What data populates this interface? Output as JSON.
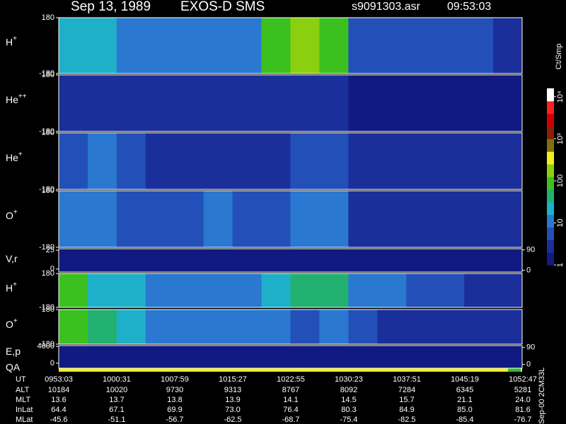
{
  "header": {
    "date": "Sep 13, 1989",
    "instrument": "EXOS-D SMS",
    "file": "s9091303.asr",
    "time": "09:53:03"
  },
  "chart_data": [
    {
      "type": "heatmap",
      "label": "H",
      "sup": "+",
      "ylim": [
        -180,
        180
      ],
      "yticks": [
        180,
        -180
      ],
      "values": [
        1.4,
        1.2,
        1.1,
        1.0,
        1.0,
        1.0,
        1.0,
        1.8,
        2.2,
        2.0,
        0.6,
        0.6,
        0.7,
        0.8,
        0.6,
        0.4
      ]
    },
    {
      "type": "heatmap",
      "label": "He",
      "sup": "++",
      "ylim": [
        -180,
        180
      ],
      "yticks": [
        180,
        -180
      ],
      "values": [
        0.4,
        0.5,
        0.5,
        0.4,
        0.3,
        0.3,
        0.3,
        0.3,
        0.4,
        0.3,
        0.2,
        0.2,
        0.2,
        0.2,
        0.2,
        0.2
      ]
    },
    {
      "type": "heatmap",
      "label": "He",
      "sup": "+",
      "ylim": [
        -180,
        180
      ],
      "yticks": [
        180,
        -180
      ],
      "values": [
        0.8,
        0.9,
        0.7,
        0.5,
        0.4,
        0.4,
        0.4,
        0.4,
        0.6,
        0.6,
        0.3,
        0.3,
        0.3,
        0.3,
        0.3,
        0.3
      ]
    },
    {
      "type": "heatmap",
      "label": "O",
      "sup": "+",
      "ylim": [
        -180,
        180
      ],
      "yticks": [
        180,
        -180
      ],
      "values": [
        1.0,
        0.9,
        0.8,
        0.8,
        0.7,
        0.9,
        0.6,
        0.6,
        0.9,
        0.9,
        0.5,
        0.4,
        0.3,
        0.3,
        0.3,
        0.4
      ]
    },
    {
      "type": "heatmap",
      "label": "V,r",
      "ylim": [
        -4,
        27
      ],
      "yticks": [
        25,
        0
      ],
      "y2lim": [
        -8,
        95
      ],
      "y2ticks": [
        90,
        0
      ],
      "values": [
        0,
        0,
        0,
        0,
        0,
        0,
        0,
        0,
        0,
        0,
        0,
        0,
        0,
        0,
        0,
        0
      ]
    },
    {
      "type": "heatmap",
      "label": "H",
      "sup": "+",
      "ylim": [
        -180,
        180
      ],
      "yticks": [
        180,
        -180
      ],
      "values": [
        1.8,
        1.3,
        1.2,
        1.1,
        1.0,
        1.1,
        1.1,
        1.3,
        1.5,
        1.5,
        1.1,
        0.9,
        0.8,
        0.7,
        0.5,
        0.4
      ]
    },
    {
      "type": "heatmap",
      "label": "O",
      "sup": "+",
      "ylim": [
        -180,
        180
      ],
      "yticks": [
        180,
        -180
      ],
      "values": [
        1.8,
        1.5,
        1.2,
        1.0,
        0.9,
        0.9,
        0.9,
        0.9,
        0.8,
        0.9,
        0.6,
        0.5,
        0.4,
        0.3,
        0.3,
        0.3
      ]
    },
    {
      "type": "heatmap",
      "label": "E,p",
      "label2": "QA",
      "ylim": [
        -1200,
        4200
      ],
      "yticks": [
        4000,
        0
      ],
      "y2lim": [
        -20,
        100
      ],
      "y2ticks": [
        90,
        0
      ],
      "values": [
        0,
        0,
        0,
        0,
        0,
        0,
        0,
        0,
        0,
        0,
        0,
        0,
        0,
        0,
        0,
        0
      ]
    }
  ],
  "colorbar": {
    "title": "Ct/Smp",
    "clim": [
      0,
      4.2
    ],
    "colors": [
      "#101a80",
      "#1a2f9a",
      "#2350b8",
      "#2a78d0",
      "#1eb0c8",
      "#22b070",
      "#3cc020",
      "#8ad010",
      "#f0f020",
      "#807010",
      "#8a2008",
      "#d00000",
      "#ff2020",
      "#ffffff"
    ],
    "ticks": [
      {
        "value": 4,
        "label": "10⁴"
      },
      {
        "value": 3,
        "label": "10³"
      },
      {
        "value": 2,
        "label": "100"
      },
      {
        "value": 1,
        "label": "10"
      },
      {
        "value": 0,
        "label": "1"
      }
    ]
  },
  "table": {
    "rows": [
      [
        "UT",
        "0953:03",
        "1000:31",
        "1007:59",
        "1015:27",
        "1022:55",
        "1030:23",
        "1037:51",
        "1045:19",
        "1052:47"
      ],
      [
        "ALT",
        "10184",
        "10020",
        "9730",
        "9313",
        "8767",
        "8092",
        "7284",
        "6345",
        "5281"
      ],
      [
        "MLT",
        "13.6",
        "13.7",
        "13.8",
        "13.9",
        "14.1",
        "14.5",
        "15.7",
        "21.1",
        "24.0"
      ],
      [
        "InLat",
        "64.4",
        "67.1",
        "69.9",
        "73.0",
        "76.4",
        "80.3",
        "84.9",
        "85.0",
        "81.6"
      ],
      [
        "MLat",
        "-45.6",
        "-51.1",
        "-56.7",
        "-62.5",
        "-68.7",
        "-75.4",
        "-82.5",
        "-85.4",
        "-76.7"
      ]
    ]
  },
  "footer": "Sep-00 2CM33L"
}
